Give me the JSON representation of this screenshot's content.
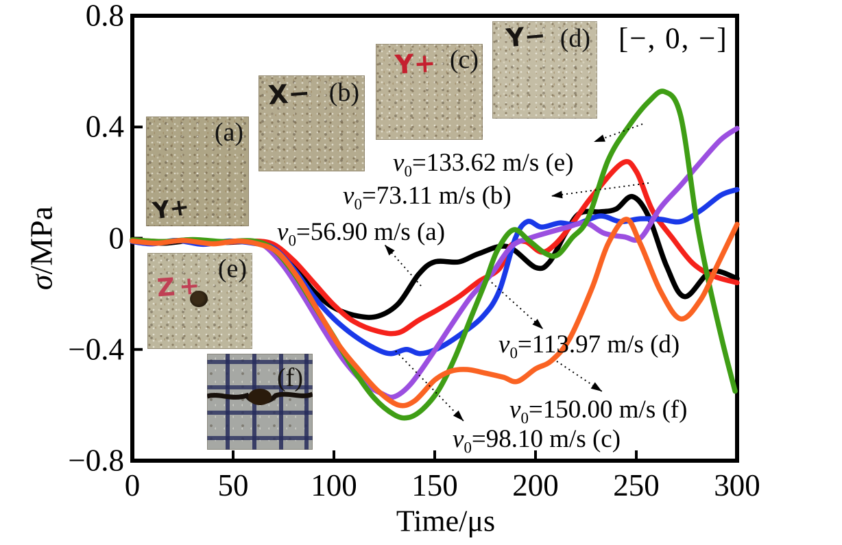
{
  "figure": {
    "condition_label": "[−, 0, −]",
    "y_axis": {
      "symbol": "σ",
      "rest": "/MPa",
      "tick_labels": [
        "0.8",
        "0.4",
        "0",
        "−0.4",
        "−0.8"
      ]
    },
    "x_axis": {
      "title": "Time/μs",
      "tick_labels": [
        "0",
        "50",
        "100",
        "150",
        "200",
        "250",
        "300"
      ]
    }
  },
  "chart_data": {
    "type": "line",
    "title": "",
    "xlabel": "Time/μs",
    "ylabel": "σ/MPa",
    "xlim": [
      0,
      300
    ],
    "ylim": [
      -0.8,
      0.8
    ],
    "x_ticks": [
      0,
      50,
      100,
      150,
      200,
      250,
      300
    ],
    "y_ticks": [
      0.8,
      0.4,
      0,
      -0.4,
      -0.8
    ],
    "grid": false,
    "legend_position": "inline-annotations",
    "series": [
      {
        "name": "v0=56.90 m/s (a)",
        "color": "#000000",
        "points": [
          [
            0,
            -0.01
          ],
          [
            15,
            -0.018
          ],
          [
            30,
            -0.008
          ],
          [
            45,
            -0.015
          ],
          [
            60,
            -0.012
          ],
          [
            70,
            -0.03
          ],
          [
            80,
            -0.1
          ],
          [
            90,
            -0.19
          ],
          [
            100,
            -0.25
          ],
          [
            112,
            -0.28
          ],
          [
            122,
            -0.28
          ],
          [
            132,
            -0.235
          ],
          [
            142,
            -0.13
          ],
          [
            150,
            -0.085
          ],
          [
            162,
            -0.085
          ],
          [
            172,
            -0.055
          ],
          [
            186,
            -0.03
          ],
          [
            200,
            -0.105
          ],
          [
            207,
            -0.085
          ],
          [
            215,
            0.02
          ],
          [
            222,
            0.09
          ],
          [
            232,
            0.095
          ],
          [
            240,
            0.105
          ],
          [
            248,
            0.15
          ],
          [
            256,
            0.08
          ],
          [
            265,
            -0.1
          ],
          [
            274,
            -0.21
          ],
          [
            287,
            -0.12
          ],
          [
            300,
            -0.145
          ]
        ]
      },
      {
        "name": "v0=73.11 m/s (b)",
        "color": "#f5221b",
        "points": [
          [
            0,
            -0.006
          ],
          [
            15,
            -0.012
          ],
          [
            30,
            -0.006
          ],
          [
            45,
            -0.014
          ],
          [
            60,
            -0.01
          ],
          [
            70,
            -0.022
          ],
          [
            80,
            -0.08
          ],
          [
            90,
            -0.16
          ],
          [
            100,
            -0.24
          ],
          [
            110,
            -0.3
          ],
          [
            122,
            -0.335
          ],
          [
            132,
            -0.34
          ],
          [
            142,
            -0.295
          ],
          [
            152,
            -0.255
          ],
          [
            162,
            -0.21
          ],
          [
            172,
            -0.155
          ],
          [
            182,
            -0.11
          ],
          [
            188,
            -0.025
          ],
          [
            195,
            -0.012
          ],
          [
            203,
            -0.05
          ],
          [
            210,
            -0.02
          ],
          [
            218,
            0.05
          ],
          [
            228,
            0.15
          ],
          [
            243,
            0.27
          ],
          [
            250,
            0.24
          ],
          [
            258,
            0.1
          ],
          [
            268,
            0
          ],
          [
            278,
            -0.09
          ],
          [
            288,
            -0.135
          ],
          [
            300,
            -0.16
          ]
        ]
      },
      {
        "name": "v0=98.10 m/s (c)",
        "color": "#1a39e8",
        "points": [
          [
            0,
            -0.012
          ],
          [
            10,
            -0.02
          ],
          [
            22,
            -0.008
          ],
          [
            35,
            -0.022
          ],
          [
            48,
            -0.01
          ],
          [
            60,
            -0.018
          ],
          [
            70,
            -0.035
          ],
          [
            80,
            -0.11
          ],
          [
            90,
            -0.21
          ],
          [
            100,
            -0.29
          ],
          [
            110,
            -0.35
          ],
          [
            120,
            -0.395
          ],
          [
            128,
            -0.415
          ],
          [
            136,
            -0.4
          ],
          [
            143,
            -0.415
          ],
          [
            152,
            -0.395
          ],
          [
            163,
            -0.345
          ],
          [
            174,
            -0.28
          ],
          [
            182,
            -0.19
          ],
          [
            190,
            0
          ],
          [
            196,
            0.06
          ],
          [
            203,
            0.04
          ],
          [
            212,
            0.055
          ],
          [
            220,
            0.05
          ],
          [
            232,
            0.08
          ],
          [
            242,
            0.06
          ],
          [
            252,
            0.07
          ],
          [
            262,
            0.068
          ],
          [
            272,
            0.06
          ],
          [
            282,
            0.1
          ],
          [
            292,
            0.155
          ],
          [
            300,
            0.175
          ]
        ]
      },
      {
        "name": "v0=113.97 m/s (d)",
        "color": "#9b4fe0",
        "points": [
          [
            0,
            -0.008
          ],
          [
            14,
            -0.015
          ],
          [
            28,
            -0.006
          ],
          [
            42,
            -0.016
          ],
          [
            55,
            -0.01
          ],
          [
            65,
            -0.025
          ],
          [
            75,
            -0.1
          ],
          [
            85,
            -0.21
          ],
          [
            95,
            -0.33
          ],
          [
            105,
            -0.44
          ],
          [
            115,
            -0.52
          ],
          [
            124,
            -0.56
          ],
          [
            130,
            -0.57
          ],
          [
            138,
            -0.525
          ],
          [
            148,
            -0.425
          ],
          [
            158,
            -0.315
          ],
          [
            168,
            -0.21
          ],
          [
            178,
            -0.13
          ],
          [
            188,
            -0.03
          ],
          [
            197,
            0
          ],
          [
            206,
            0.02
          ],
          [
            216,
            0.04
          ],
          [
            225,
            0.055
          ],
          [
            234,
            0.018
          ],
          [
            244,
            0.005
          ],
          [
            252,
            0
          ],
          [
            262,
            0.11
          ],
          [
            272,
            0.19
          ],
          [
            282,
            0.275
          ],
          [
            292,
            0.355
          ],
          [
            300,
            0.395
          ]
        ]
      },
      {
        "name": "v0=133.62 m/s (e)",
        "color": "#3f9e15",
        "points": [
          [
            0,
            -0.006
          ],
          [
            15,
            -0.012
          ],
          [
            30,
            -0.005
          ],
          [
            45,
            -0.012
          ],
          [
            60,
            -0.01
          ],
          [
            70,
            -0.04
          ],
          [
            80,
            -0.125
          ],
          [
            90,
            -0.24
          ],
          [
            100,
            -0.355
          ],
          [
            110,
            -0.475
          ],
          [
            120,
            -0.575
          ],
          [
            130,
            -0.635
          ],
          [
            137,
            -0.645
          ],
          [
            144,
            -0.615
          ],
          [
            152,
            -0.545
          ],
          [
            160,
            -0.43
          ],
          [
            168,
            -0.285
          ],
          [
            175,
            -0.16
          ],
          [
            181,
            -0.045
          ],
          [
            189,
            0.03
          ],
          [
            197,
            -0.01
          ],
          [
            205,
            -0.055
          ],
          [
            211,
            -0.06
          ],
          [
            218,
            0
          ],
          [
            226,
            0.07
          ],
          [
            236,
            0.28
          ],
          [
            246,
            0.4
          ],
          [
            256,
            0.49
          ],
          [
            264,
            0.527
          ],
          [
            272,
            0.44
          ],
          [
            280,
            0.06
          ],
          [
            286,
            -0.16
          ],
          [
            293,
            -0.38
          ],
          [
            299,
            -0.55
          ]
        ]
      },
      {
        "name": "v0=150.00 m/s (f)",
        "color": "#fa6323",
        "points": [
          [
            0,
            -0.01
          ],
          [
            12,
            -0.018
          ],
          [
            25,
            -0.008
          ],
          [
            40,
            -0.02
          ],
          [
            52,
            -0.01
          ],
          [
            62,
            -0.02
          ],
          [
            72,
            -0.05
          ],
          [
            82,
            -0.14
          ],
          [
            92,
            -0.26
          ],
          [
            102,
            -0.38
          ],
          [
            112,
            -0.47
          ],
          [
            122,
            -0.55
          ],
          [
            132,
            -0.6
          ],
          [
            140,
            -0.585
          ],
          [
            150,
            -0.51
          ],
          [
            158,
            -0.478
          ],
          [
            166,
            -0.472
          ],
          [
            175,
            -0.485
          ],
          [
            184,
            -0.5
          ],
          [
            191,
            -0.515
          ],
          [
            200,
            -0.47
          ],
          [
            208,
            -0.44
          ],
          [
            217,
            -0.36
          ],
          [
            228,
            -0.18
          ],
          [
            236,
            -0.02
          ],
          [
            245,
            0.068
          ],
          [
            252,
            -0.02
          ],
          [
            262,
            -0.19
          ],
          [
            272,
            -0.29
          ],
          [
            282,
            -0.22
          ],
          [
            290,
            -0.1
          ],
          [
            296,
            -0.01
          ],
          [
            300,
            0.05
          ]
        ]
      }
    ]
  },
  "annotations": [
    {
      "id": "e",
      "var": "v",
      "sub": "0",
      "text": "=133.62 m/s (e)"
    },
    {
      "id": "b",
      "var": "v",
      "sub": "0",
      "text": "=73.11 m/s (b)"
    },
    {
      "id": "a",
      "var": "v",
      "sub": "0",
      "text": "=56.90 m/s (a)"
    },
    {
      "id": "d",
      "var": "v",
      "sub": "0",
      "text": "=113.97 m/s (d)"
    },
    {
      "id": "f",
      "var": "v",
      "sub": "0",
      "text": "=150.00 m/s (f)"
    },
    {
      "id": "c",
      "var": "v",
      "sub": "0",
      "text": "=98.10 m/s (c)"
    }
  ],
  "insets": [
    {
      "id": "a",
      "label": "(a)",
      "marker": "Y+",
      "marker_color": "#171411"
    },
    {
      "id": "b",
      "label": "(b)",
      "marker": "X−",
      "marker_color": "#171411"
    },
    {
      "id": "c",
      "label": "(c)",
      "marker": "Y+",
      "marker_color": "#c5202f"
    },
    {
      "id": "d",
      "label": "(d)",
      "marker": "Y−",
      "marker_color": "#171411"
    },
    {
      "id": "e",
      "label": "(e)",
      "marker": "Z+",
      "marker_color": "#c04055"
    },
    {
      "id": "f",
      "label": "(f)",
      "marker": "",
      "marker_color": ""
    }
  ]
}
